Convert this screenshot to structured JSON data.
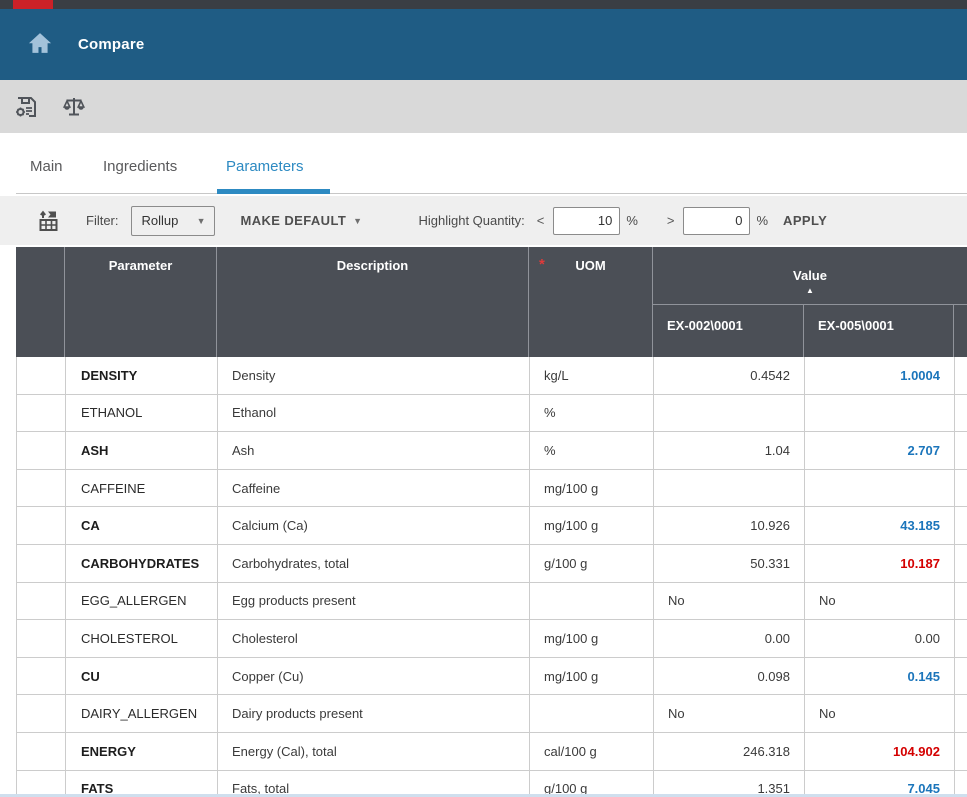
{
  "header": {
    "title": "Compare"
  },
  "toolbar": {
    "save_icon": "save-settings-icon",
    "compare_icon": "compare-scales-icon"
  },
  "tabs": [
    {
      "label": "Main",
      "active": false
    },
    {
      "label": "Ingredients",
      "active": false
    },
    {
      "label": "Parameters",
      "active": true
    }
  ],
  "filter_bar": {
    "grid_icon": "rollup-grid-icon",
    "filter_label": "Filter:",
    "filter_value": "Rollup",
    "make_default_label": "MAKE DEFAULT",
    "highlight_label": "Highlight Quantity:",
    "less_than_symbol": "<",
    "less_than_value": "10",
    "greater_than_symbol": ">",
    "greater_than_value": "0",
    "percent_sign": "%",
    "apply_label": "APPLY"
  },
  "table": {
    "headers": {
      "parameter": "Parameter",
      "description": "Description",
      "uom": "UOM",
      "uom_required_mark": "*",
      "value": "Value",
      "value_sort": "asc"
    },
    "value_columns": [
      "EX-002\\0001",
      "EX-005\\0001"
    ],
    "rows": [
      {
        "parameter": "DENSITY",
        "bold": true,
        "description": "Density",
        "uom": "kg/L",
        "ex002": {
          "text": "0.4542",
          "align": "right",
          "style": ""
        },
        "ex005": {
          "text": "1.0004",
          "align": "right",
          "style": "blue"
        }
      },
      {
        "parameter": "ETHANOL",
        "bold": false,
        "description": "Ethanol",
        "uom": "%",
        "ex002": {
          "text": "",
          "align": "right",
          "style": ""
        },
        "ex005": {
          "text": "",
          "align": "right",
          "style": ""
        }
      },
      {
        "parameter": "ASH",
        "bold": true,
        "description": "Ash",
        "uom": "%",
        "ex002": {
          "text": "1.04",
          "align": "right",
          "style": ""
        },
        "ex005": {
          "text": "2.707",
          "align": "right",
          "style": "blue"
        }
      },
      {
        "parameter": "CAFFEINE",
        "bold": false,
        "description": "Caffeine",
        "uom": "mg/100 g",
        "ex002": {
          "text": "",
          "align": "right",
          "style": ""
        },
        "ex005": {
          "text": "",
          "align": "right",
          "style": ""
        }
      },
      {
        "parameter": "CA",
        "bold": true,
        "description": "Calcium (Ca)",
        "uom": "mg/100 g",
        "ex002": {
          "text": "10.926",
          "align": "right",
          "style": ""
        },
        "ex005": {
          "text": "43.185",
          "align": "right",
          "style": "blue"
        }
      },
      {
        "parameter": "CARBOHYDRATES",
        "bold": true,
        "description": "Carbohydrates, total",
        "uom": "g/100 g",
        "ex002": {
          "text": "50.331",
          "align": "right",
          "style": ""
        },
        "ex005": {
          "text": "10.187",
          "align": "right",
          "style": "red"
        }
      },
      {
        "parameter": "EGG_ALLERGEN",
        "bold": false,
        "description": "Egg products present",
        "uom": "",
        "ex002": {
          "text": "No",
          "align": "left",
          "style": ""
        },
        "ex005": {
          "text": "No",
          "align": "left",
          "style": ""
        }
      },
      {
        "parameter": "CHOLESTEROL",
        "bold": false,
        "description": "Cholesterol",
        "uom": "mg/100 g",
        "ex002": {
          "text": "0.00",
          "align": "right",
          "style": ""
        },
        "ex005": {
          "text": "0.00",
          "align": "right",
          "style": ""
        }
      },
      {
        "parameter": "CU",
        "bold": true,
        "description": "Copper (Cu)",
        "uom": "mg/100 g",
        "ex002": {
          "text": "0.098",
          "align": "right",
          "style": ""
        },
        "ex005": {
          "text": "0.145",
          "align": "right",
          "style": "blue"
        }
      },
      {
        "parameter": "DAIRY_ALLERGEN",
        "bold": false,
        "description": "Dairy products present",
        "uom": "",
        "ex002": {
          "text": "No",
          "align": "left",
          "style": ""
        },
        "ex005": {
          "text": "No",
          "align": "left",
          "style": ""
        }
      },
      {
        "parameter": "ENERGY",
        "bold": true,
        "description": "Energy (Cal), total",
        "uom": "cal/100 g",
        "ex002": {
          "text": "246.318",
          "align": "right",
          "style": ""
        },
        "ex005": {
          "text": "104.902",
          "align": "right",
          "style": "red"
        }
      },
      {
        "parameter": "FATS",
        "bold": true,
        "description": "Fats, total",
        "uom": "g/100 g",
        "ex002": {
          "text": "1.351",
          "align": "right",
          "style": ""
        },
        "ex005": {
          "text": "7.045",
          "align": "right",
          "style": "blue"
        }
      }
    ]
  },
  "colors": {
    "top_strip": "#3a3e44",
    "brand_red": "#cb2128",
    "header_blue": "#1f5c84",
    "accent_tab_blue": "#2d8ac2",
    "table_header_bg": "#4b4f56",
    "value_increase_blue": "#1b75bb",
    "value_decrease_red": "#d40000",
    "required_mark_red": "#e03a3a"
  }
}
